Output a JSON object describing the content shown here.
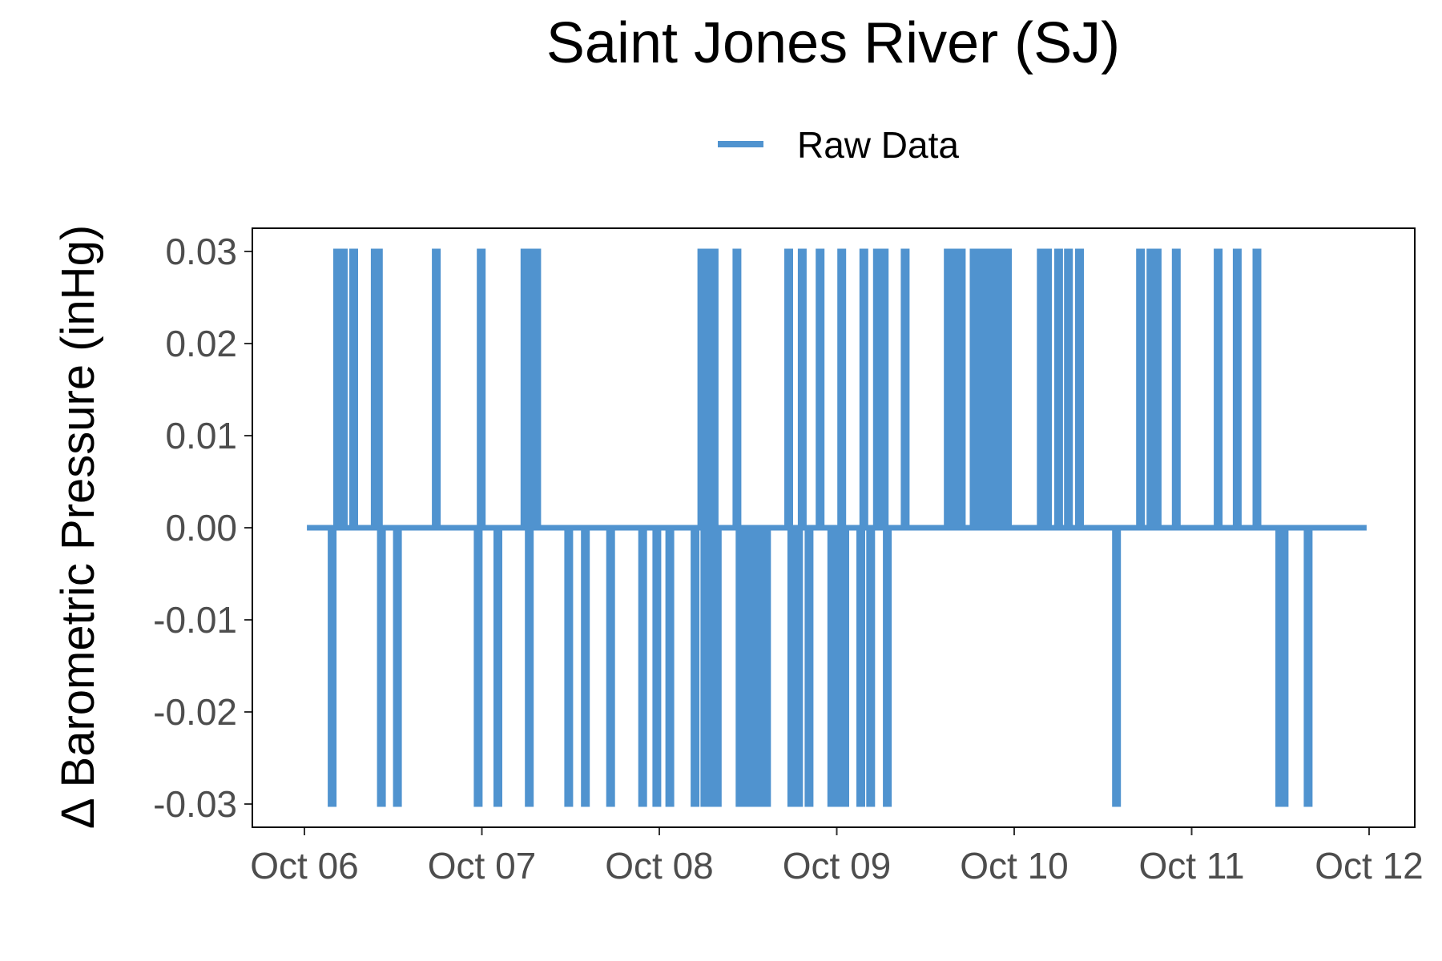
{
  "chart_data": {
    "type": "line",
    "title": "Saint Jones River (SJ)",
    "xlabel": "",
    "ylabel": "Δ Barometric Pressure (inHg)",
    "xlim": [
      "Oct 06",
      "Oct 12"
    ],
    "ylim": [
      -0.0325,
      0.0325
    ],
    "x_tick_labels": [
      "Oct 06",
      "Oct 07",
      "Oct 08",
      "Oct 09",
      "Oct 10",
      "Oct 11",
      "Oct 12"
    ],
    "y_tick_values": [
      0.03,
      0.02,
      0.01,
      0.0,
      -0.01,
      -0.02,
      -0.03
    ],
    "y_tick_labels": [
      "0.03",
      "0.02",
      "0.01",
      "0.00",
      "-0.01",
      "-0.02",
      "-0.03"
    ],
    "grid": false,
    "legend": {
      "position": "top",
      "entries": [
        "Raw Data"
      ]
    },
    "series": [
      {
        "name": "Raw Data",
        "color": "#5093cf",
        "x_start": "Oct 06 00:20",
        "x_end": "Oct 11 23:40",
        "baseline": 0.0,
        "spikes": [
          {
            "x": "Oct 06 03:45",
            "value": -0.03
          },
          {
            "x": "Oct 06 04:30",
            "value": 0.03
          },
          {
            "x": "Oct 06 05:15",
            "value": 0.03
          },
          {
            "x": "Oct 06 06:40",
            "value": 0.03
          },
          {
            "x": "Oct 06 09:35",
            "value": 0.03
          },
          {
            "x": "Oct 06 10:00",
            "value": 0.03
          },
          {
            "x": "Oct 06 10:25",
            "value": -0.03
          },
          {
            "x": "Oct 06 12:35",
            "value": -0.03
          },
          {
            "x": "Oct 06 17:50",
            "value": 0.03
          },
          {
            "x": "Oct 06 23:30",
            "value": -0.03
          },
          {
            "x": "Oct 06 23:55",
            "value": 0.03
          },
          {
            "x": "Oct 07 02:10",
            "value": -0.03
          },
          {
            "x": "Oct 07 05:50",
            "value": 0.03
          },
          {
            "x": "Oct 07 06:25",
            "value": -0.03
          },
          {
            "x": "Oct 07 06:50",
            "value": 0.03
          },
          {
            "x": "Oct 07 07:25",
            "value": 0.03
          },
          {
            "x": "Oct 07 11:45",
            "value": -0.03
          },
          {
            "x": "Oct 07 14:00",
            "value": -0.03
          },
          {
            "x": "Oct 07 17:25",
            "value": -0.03
          },
          {
            "x": "Oct 07 21:45",
            "value": -0.03
          },
          {
            "x": "Oct 07 23:40",
            "value": -0.03
          },
          {
            "x": "Oct 08 01:25",
            "value": -0.03
          },
          {
            "x": "Oct 08 04:50",
            "value": -0.03
          },
          {
            "x": "Oct 08 05:45",
            "value": 0.03
          },
          {
            "x": "Oct 08 06:10",
            "value": -0.03
          },
          {
            "x": "Oct 08 06:35",
            "value": 0.03
          },
          {
            "x": "Oct 08 07:00",
            "value": -0.03
          },
          {
            "x": "Oct 08 07:25",
            "value": 0.03
          },
          {
            "x": "Oct 08 07:50",
            "value": -0.03
          },
          {
            "x": "Oct 08 10:30",
            "value": 0.03
          },
          {
            "x": "Oct 08 10:55",
            "value": -0.03
          },
          {
            "x": "Oct 08 11:45",
            "value": -0.03
          },
          {
            "x": "Oct 08 12:40",
            "value": -0.03
          },
          {
            "x": "Oct 08 13:35",
            "value": -0.03
          },
          {
            "x": "Oct 08 14:30",
            "value": -0.03
          },
          {
            "x": "Oct 08 17:30",
            "value": 0.03
          },
          {
            "x": "Oct 08 17:55",
            "value": -0.03
          },
          {
            "x": "Oct 08 18:50",
            "value": -0.03
          },
          {
            "x": "Oct 08 19:20",
            "value": 0.03
          },
          {
            "x": "Oct 08 20:15",
            "value": -0.03
          },
          {
            "x": "Oct 08 21:45",
            "value": 0.03
          },
          {
            "x": "Oct 08 23:20",
            "value": -0.03
          },
          {
            "x": "Oct 09 00:15",
            "value": -0.03
          },
          {
            "x": "Oct 09 00:40",
            "value": 0.03
          },
          {
            "x": "Oct 09 01:05",
            "value": -0.03
          },
          {
            "x": "Oct 09 03:15",
            "value": -0.03
          },
          {
            "x": "Oct 09 03:40",
            "value": 0.03
          },
          {
            "x": "Oct 09 04:35",
            "value": -0.03
          },
          {
            "x": "Oct 09 05:30",
            "value": 0.03
          },
          {
            "x": "Oct 09 06:25",
            "value": 0.03
          },
          {
            "x": "Oct 09 06:50",
            "value": -0.03
          },
          {
            "x": "Oct 09 09:15",
            "value": 0.03
          },
          {
            "x": "Oct 09 15:05",
            "value": 0.03
          },
          {
            "x": "Oct 09 15:55",
            "value": 0.03
          },
          {
            "x": "Oct 09 16:50",
            "value": 0.03
          },
          {
            "x": "Oct 09 18:35",
            "value": 0.03
          },
          {
            "x": "Oct 09 19:30",
            "value": 0.03
          },
          {
            "x": "Oct 09 20:25",
            "value": 0.03
          },
          {
            "x": "Oct 09 21:20",
            "value": 0.03
          },
          {
            "x": "Oct 09 22:10",
            "value": 0.03
          },
          {
            "x": "Oct 09 23:05",
            "value": 0.03
          },
          {
            "x": "Oct 10 03:40",
            "value": 0.03
          },
          {
            "x": "Oct 10 04:30",
            "value": 0.03
          },
          {
            "x": "Oct 10 06:00",
            "value": 0.03
          },
          {
            "x": "Oct 10 07:20",
            "value": 0.03
          },
          {
            "x": "Oct 10 08:50",
            "value": 0.03
          },
          {
            "x": "Oct 10 13:50",
            "value": -0.03
          },
          {
            "x": "Oct 10 17:05",
            "value": 0.03
          },
          {
            "x": "Oct 10 18:30",
            "value": 0.03
          },
          {
            "x": "Oct 10 19:20",
            "value": 0.03
          },
          {
            "x": "Oct 10 21:55",
            "value": 0.03
          },
          {
            "x": "Oct 11 03:35",
            "value": 0.03
          },
          {
            "x": "Oct 11 06:10",
            "value": 0.03
          },
          {
            "x": "Oct 11 08:50",
            "value": 0.03
          },
          {
            "x": "Oct 11 11:55",
            "value": -0.03
          },
          {
            "x": "Oct 11 12:30",
            "value": -0.03
          },
          {
            "x": "Oct 11 15:45",
            "value": -0.03
          }
        ]
      }
    ]
  }
}
